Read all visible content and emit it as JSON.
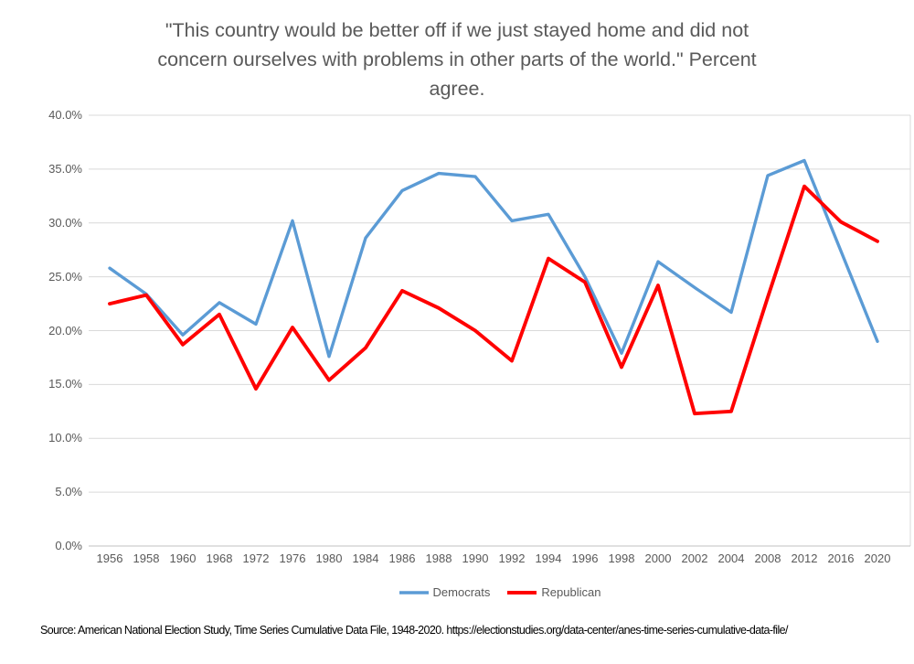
{
  "header": {
    "title_lines": [
      "\"This country would be better off if we just stayed home and did not",
      "concern ourselves with problems in other parts of the world.\" Percent",
      "agree."
    ]
  },
  "source_note": "Source: American National Election Study, Time Series Cumulative Data File, 1948-2020. https://electionstudies.org/data-center/anes-time-series-cumulative-data-file/",
  "colors": {
    "gridline": "#D9D9D9",
    "axis_line": "#C0C0C0",
    "tick_text": "#595959",
    "title_text": "#595959"
  },
  "chart_data": {
    "type": "line",
    "title": "\"This country would be better off if we just stayed home and did not concern ourselves with problems in other parts of the world.\" Percent agree.",
    "xlabel": "",
    "ylabel": "",
    "ylim": [
      0,
      40
    ],
    "ytick_step": 5,
    "grid": true,
    "legend_position": "bottom",
    "y_tick_labels": [
      "0.0%",
      "5.0%",
      "10.0%",
      "15.0%",
      "20.0%",
      "25.0%",
      "30.0%",
      "35.0%",
      "40.0%"
    ],
    "categories": [
      "1956",
      "1958",
      "1960",
      "1968",
      "1972",
      "1976",
      "1980",
      "1984",
      "1986",
      "1988",
      "1990",
      "1992",
      "1994",
      "1996",
      "1998",
      "2000",
      "2002",
      "2004",
      "2008",
      "2012",
      "2016",
      "2020"
    ],
    "series": [
      {
        "name": "Democrats",
        "color": "#5B9BD5",
        "stroke_width": 3.4,
        "values": [
          25.8,
          23.4,
          19.6,
          22.6,
          20.6,
          30.2,
          17.6,
          28.6,
          33.0,
          34.6,
          34.3,
          30.2,
          30.8,
          25.0,
          17.9,
          26.4,
          24.0,
          21.7,
          34.4,
          35.8,
          27.4,
          19.0
        ]
      },
      {
        "name": "Republican",
        "color": "#FF0000",
        "stroke_width": 3.9,
        "values": [
          22.5,
          23.3,
          18.7,
          21.5,
          14.6,
          20.3,
          15.4,
          18.4,
          23.7,
          22.1,
          20.0,
          17.2,
          26.7,
          24.5,
          16.6,
          24.2,
          12.3,
          12.5,
          23.1,
          33.4,
          30.1,
          28.3
        ]
      }
    ]
  }
}
